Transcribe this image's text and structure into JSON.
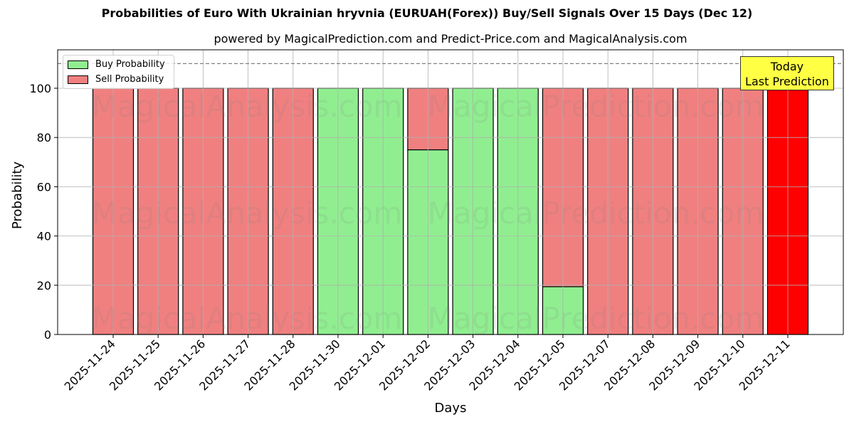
{
  "chart_data": {
    "type": "bar",
    "stacked": true,
    "title": "Probabilities of Euro With Ukrainian hryvnia (EURUAH(Forex)) Buy/Sell Signals Over 15 Days (Dec 12)",
    "subtitle": "powered by MagicalPrediction.com and Predict-Price.com and MagicalAnalysis.com",
    "xlabel": "Days",
    "ylabel": "Probability",
    "ylim": [
      0,
      115
    ],
    "yticks": [
      0,
      20,
      40,
      60,
      80,
      100
    ],
    "grid": true,
    "legend_position": "upper left",
    "reference_line": {
      "y": 110,
      "style": "dashed",
      "color": "#808080"
    },
    "categories": [
      "2025-11-24",
      "2025-11-25",
      "2025-11-26",
      "2025-11-27",
      "2025-11-28",
      "2025-11-30",
      "2025-12-01",
      "2025-12-02",
      "2025-12-03",
      "2025-12-04",
      "2025-12-05",
      "2025-12-07",
      "2025-12-08",
      "2025-12-09",
      "2025-12-10",
      "2025-12-11"
    ],
    "series": [
      {
        "name": "Buy Probability",
        "color": "#90ee90",
        "values": [
          0,
          0,
          0,
          0,
          0,
          100,
          100,
          75,
          100,
          100,
          19.4,
          0,
          0,
          0,
          0,
          0
        ]
      },
      {
        "name": "Sell Probability",
        "color": "#f08080",
        "values": [
          100,
          100,
          100,
          100,
          100,
          0,
          0,
          25,
          0,
          0,
          80.6,
          100,
          100,
          100,
          100,
          100
        ]
      }
    ],
    "highlight": {
      "index": 15,
      "color": "#ff0000"
    },
    "annotation": {
      "text": [
        "Today",
        "Last Prediction"
      ],
      "bg": "#ffff44"
    },
    "watermarks": [
      "MagicalAnalysis.com",
      "MagicalPrediction.com"
    ]
  },
  "legend": {
    "buy_label": "Buy Probability",
    "sell_label": "Sell Probability"
  },
  "annotation": {
    "line1": "Today",
    "line2": "Last Prediction"
  }
}
